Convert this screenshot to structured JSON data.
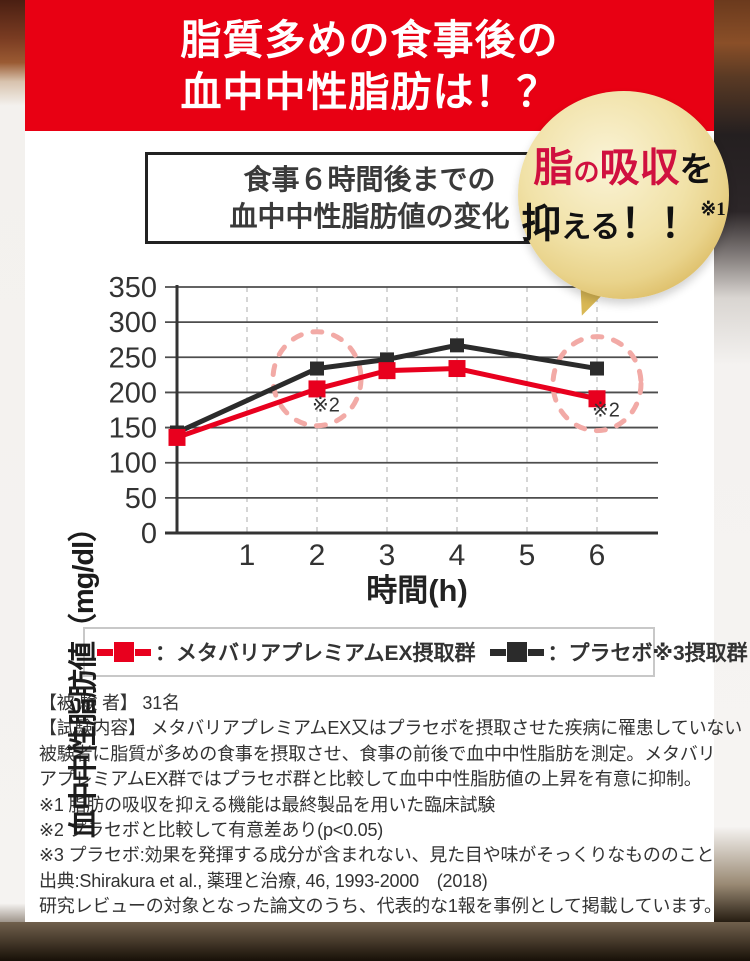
{
  "banner": {
    "line1": "脂質多めの食事後の",
    "line2": "血中中性脂肪は！？",
    "bg_color": "#e80013"
  },
  "chart_title": {
    "line1": "食事６時間後までの",
    "line2": "血中中性脂肪値の変化"
  },
  "bubble": {
    "highlight1": "脂",
    "particle1": "の",
    "highlight2": "吸収",
    "particle2": "を",
    "action_big": "抑",
    "action_small": "える",
    "exclaim": "！！",
    "note": "※1",
    "highlight_color": "#d0103f",
    "gold_color": "#d6b152"
  },
  "chart_data": {
    "type": "line",
    "title": "食事６時間後までの血中中性脂肪値の変化",
    "x": [
      0,
      2,
      3,
      4,
      6
    ],
    "xticks": [
      1,
      2,
      3,
      4,
      5,
      6
    ],
    "xlabel": "時間(h)",
    "ylabel": "血中中性脂肪値（mg/dl）",
    "ylim": [
      0,
      350
    ],
    "ytick_step": 50,
    "grid": {
      "horizontal": "solid",
      "vertical": "dashed"
    },
    "series": [
      {
        "name": "メタバリアプレミアムEX摂取群",
        "color": "#e8001e",
        "marker": "square",
        "values": [
          136,
          205,
          231,
          234,
          191
        ]
      },
      {
        "name": "プラセボ※3摂取群",
        "color": "#2b2b2b",
        "marker": "square",
        "values": [
          143,
          234,
          247,
          267,
          234
        ]
      }
    ],
    "annotations": [
      {
        "label": "※2",
        "x": 2,
        "circle_color": "#f2aaa6"
      },
      {
        "label": "※2",
        "x": 6,
        "circle_color": "#f2aaa6"
      }
    ]
  },
  "legend": {
    "entries": [
      {
        "label": "：メタバリアプレミアムEX摂取群",
        "color": "#e8001e"
      },
      {
        "label": "：プラセボ※3摂取群",
        "color": "#2b2b2b"
      }
    ]
  },
  "footer": {
    "lines": [
      "【被 験 者】 31名",
      "【試験内容】 メタバリアプレミアムEX又はプラセボを摂取させた疾病に罹患していない",
      "被験者に脂質が多めの食事を摂取させ、食事の前後で血中中性脂肪を測定。メタバリ",
      "アプレミアムEX群ではプラセボ群と比較して血中中性脂肪値の上昇を有意に抑制。",
      "※1 脂肪の吸収を抑える機能は最終製品を用いた臨床試験",
      "※2 プラセボと比較して有意差あり(p<0.05)",
      "※3 プラセボ:効果を発揮する成分が含まれない、見た目や味がそっくりなもののこと",
      "出典:Shirakura et al., 薬理と治療, 46, 1993-2000　(2018)",
      "研究レビューの対象となった論文のうち、代表的な1報を事例として掲載しています。"
    ]
  }
}
